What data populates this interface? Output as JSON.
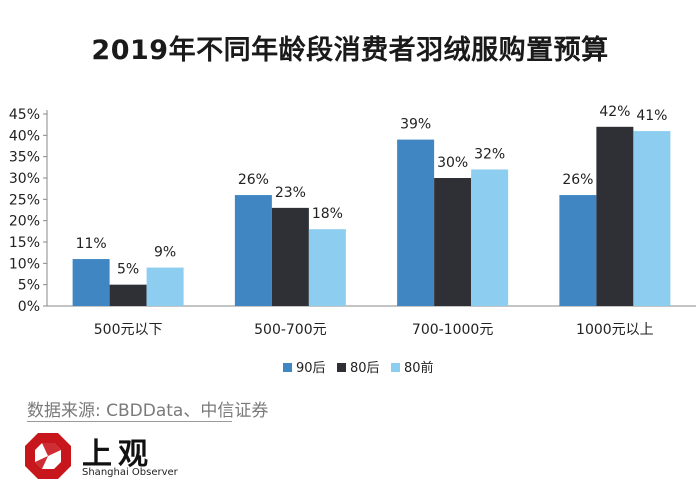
{
  "title": "2019年不同年龄段消费者羽绒服购置预算",
  "source": "数据来源: CBDData、中信证券",
  "logo": {
    "cn": "上观",
    "en": "Shanghai Observer"
  },
  "colors": {
    "series_90": "#3f86c3",
    "series_80": "#2f3035",
    "series_pre80": "#8dcdf0",
    "axis": "#888888"
  },
  "chart_data": {
    "type": "bar",
    "title": "2019年不同年龄段消费者羽绒服购置预算",
    "categories": [
      "500元以下",
      "500-700元",
      "700-1000元",
      "1000元以上"
    ],
    "series": [
      {
        "name": "90后",
        "values": [
          11,
          26,
          39,
          26
        ],
        "labels": [
          "11%",
          "26%",
          "39%",
          "26%"
        ],
        "color": "#3f86c3"
      },
      {
        "name": "80后",
        "values": [
          5,
          23,
          30,
          42
        ],
        "labels": [
          "5%",
          "23%",
          "30%",
          "42%"
        ],
        "color": "#2f3035"
      },
      {
        "name": "80前",
        "values": [
          9,
          18,
          32,
          41
        ],
        "labels": [
          "9%",
          "18%",
          "32%",
          "41%"
        ],
        "color": "#8dcdf0"
      }
    ],
    "yticks": [
      0,
      5,
      10,
      15,
      20,
      25,
      30,
      35,
      40,
      45
    ],
    "ytick_labels": [
      "0%",
      "5%",
      "10%",
      "15%",
      "20%",
      "25%",
      "30%",
      "35%",
      "40%",
      "45%"
    ],
    "ylim": [
      0,
      45
    ],
    "xlabel": "",
    "ylabel": "",
    "grid": false,
    "legend": "bottom"
  }
}
